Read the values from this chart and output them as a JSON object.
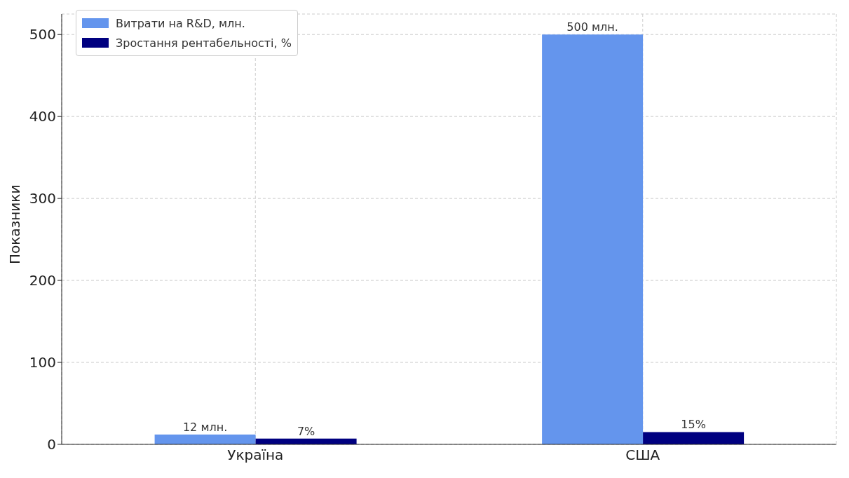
{
  "chart_data": {
    "type": "bar",
    "ylabel": "Показники",
    "categories": [
      "Україна",
      "США"
    ],
    "series": [
      {
        "name": "Витрати на R&D, млн.",
        "color": "#6495ed",
        "values": [
          12,
          500
        ],
        "value_labels": [
          "12 млн.",
          "500 млн."
        ]
      },
      {
        "name": "Зростання рентабельності, %",
        "color": "#000080",
        "values": [
          7,
          15
        ],
        "value_labels": [
          "7%",
          "15%"
        ]
      }
    ],
    "ylim": [
      0,
      525
    ],
    "yticks": [
      0,
      100,
      200,
      300,
      400,
      500
    ],
    "grid": true,
    "legend": "top left"
  }
}
